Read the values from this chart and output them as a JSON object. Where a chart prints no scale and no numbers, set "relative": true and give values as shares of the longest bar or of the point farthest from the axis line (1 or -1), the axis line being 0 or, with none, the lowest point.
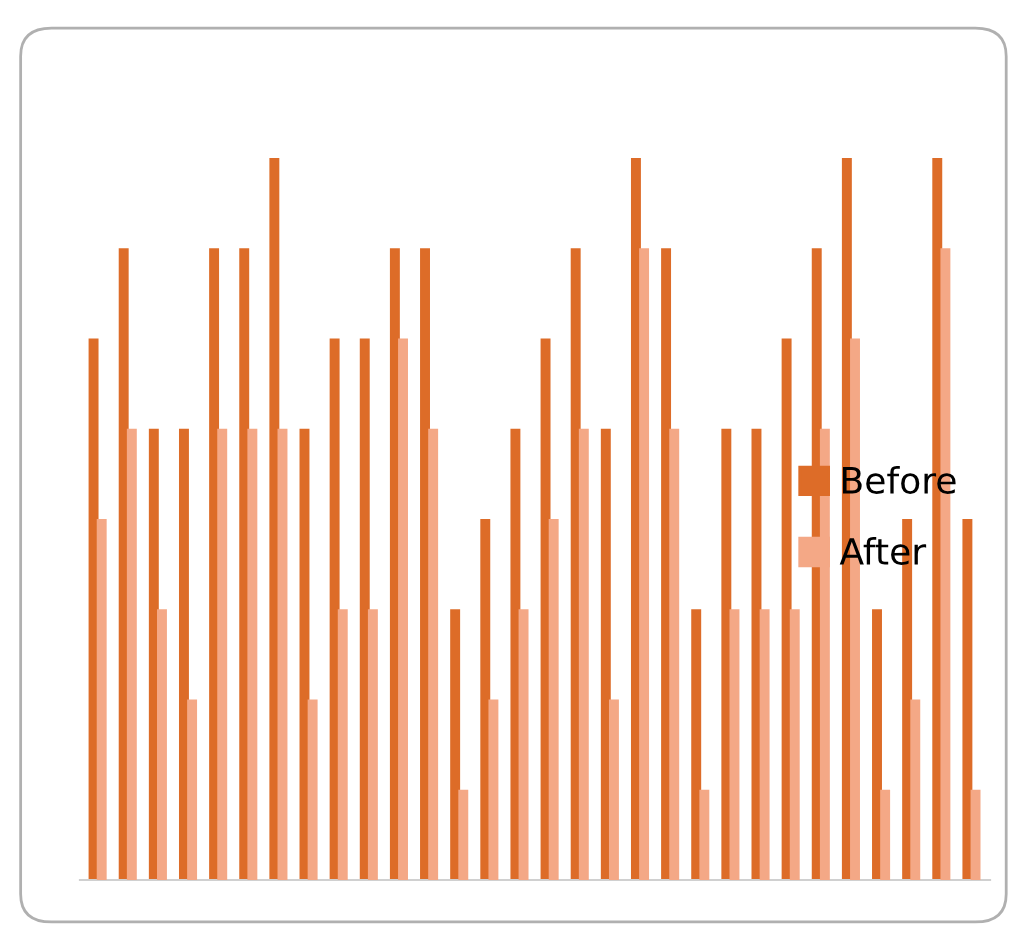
{
  "chart_data": {
    "type": "bar",
    "relative": true,
    "legend": "right",
    "categories": [
      null,
      null,
      null,
      null,
      null,
      null,
      null,
      null,
      null,
      null,
      null,
      null,
      null,
      null,
      null,
      null,
      null,
      null,
      null,
      null,
      null,
      null,
      null,
      null,
      null,
      null,
      null,
      null,
      null,
      null
    ],
    "series": [
      {
        "name": "Before",
        "color": "#dd6c28",
        "values": [
          0.75,
          0.875,
          0.625,
          0.625,
          0.875,
          0.875,
          1,
          0.625,
          0.75,
          0.75,
          0.875,
          0.875,
          0.375,
          0.5,
          0.625,
          0.75,
          0.875,
          0.625,
          1,
          0.875,
          0.375,
          0.625,
          0.625,
          0.75,
          0.875,
          1,
          0.375,
          0.5,
          1,
          0.5
        ]
      },
      {
        "name": "After",
        "color": "#f4a886",
        "values": [
          0.5,
          0.625,
          0.375,
          0.25,
          0.625,
          0.625,
          0.625,
          0.25,
          0.375,
          0.375,
          0.75,
          0.625,
          0.125,
          0.25,
          0.375,
          0.5,
          0.625,
          0.25,
          0.875,
          0.625,
          0.125,
          0.375,
          0.375,
          0.375,
          0.625,
          0.75,
          0.125,
          0.25,
          0.875,
          0.125
        ]
      }
    ]
  }
}
